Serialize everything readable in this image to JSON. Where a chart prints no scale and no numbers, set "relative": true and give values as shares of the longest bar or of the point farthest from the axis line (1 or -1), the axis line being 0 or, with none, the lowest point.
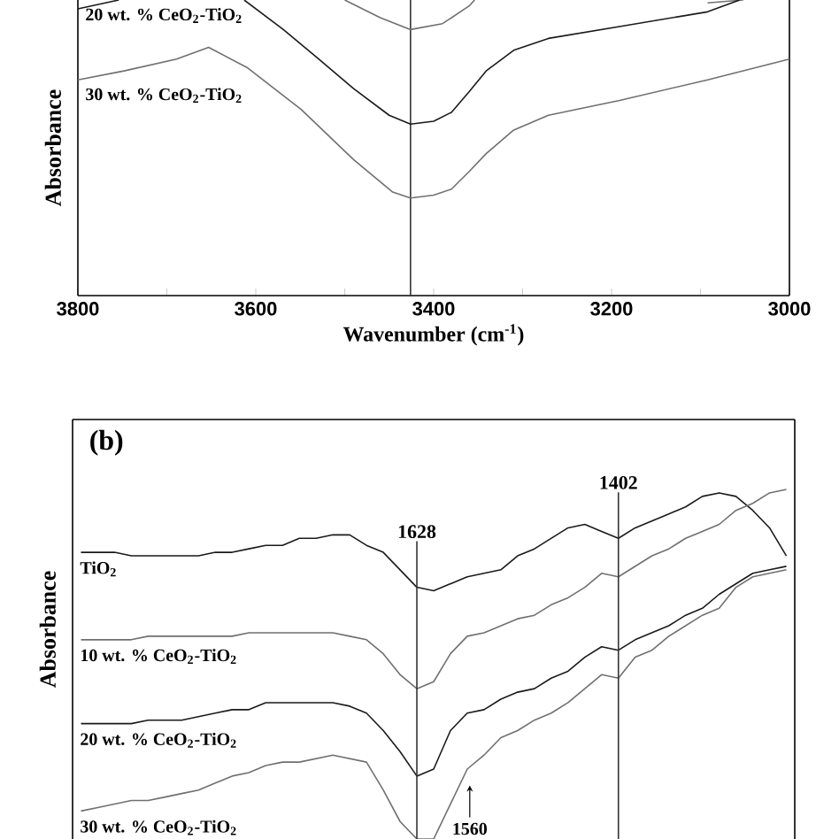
{
  "chart_data": [
    {
      "type": "line",
      "xlabel": "Wavenumber (cm$^{-1}$)",
      "ylabel": "Absorbance",
      "relative": true,
      "tick_labels": "x",
      "xlim": [
        3800,
        3000
      ],
      "xticks": [
        3800,
        {
          "value": 3700,
          "label": null
        },
        3600,
        {
          "value": 3500,
          "label": null
        },
        3400,
        {
          "value": 3300,
          "label": null
        },
        3200,
        {
          "value": 3100,
          "label": null
        },
        3000
      ],
      "series": [
        {
          "color": "#1a1a1a",
          "x": [
            3800,
            3754
          ],
          "values": [
            0.97,
            1.0
          ]
        },
        {
          "color": "#707070",
          "x": [
            3500,
            3460,
            3426,
            3390,
            3360,
            3354
          ],
          "values": [
            1.0,
            0.94,
            0.9,
            0.92,
            0.98,
            1.0
          ]
        },
        {
          "color": "#707070",
          "x": [
            3092,
            3052
          ],
          "values": [
            0.99,
            1.0
          ]
        },
        {
          "name": "20 wt. % CeO$_{2}$-TiO$_{2}$",
          "color": "#1a1a1a",
          "x": [
            3613,
            3569,
            3529,
            3490,
            3450,
            3426,
            3400,
            3380,
            3360,
            3341,
            3310,
            3271,
            3191,
            3092,
            3056
          ],
          "values": [
            1.0,
            0.9,
            0.8,
            0.7,
            0.61,
            0.58,
            0.59,
            0.62,
            0.69,
            0.76,
            0.83,
            0.87,
            0.91,
            0.96,
            1.0
          ]
        },
        {
          "name": "30 wt. % CeO$_{2}$-TiO$_{2}$",
          "color": "#707070",
          "x": [
            3800,
            3748,
            3689,
            3653,
            3609,
            3549,
            3490,
            3446,
            3426,
            3400,
            3380,
            3360,
            3341,
            3310,
            3271,
            3191,
            3092,
            3000
          ],
          "values": [
            0.73,
            0.76,
            0.8,
            0.84,
            0.77,
            0.63,
            0.46,
            0.35,
            0.33,
            0.34,
            0.36,
            0.42,
            0.48,
            0.56,
            0.61,
            0.66,
            0.73,
            0.8
          ]
        }
      ],
      "ref_lines": [
        {
          "axis": "x",
          "value": 3426,
          "color": "#333333"
        }
      ]
    },
    {
      "type": "line",
      "ylabel": "Absorbance",
      "relative": true,
      "tick_labels": false,
      "categories": [
        null,
        null,
        null,
        null,
        null,
        null,
        null,
        null,
        null,
        null,
        null,
        null,
        null,
        null,
        null,
        null,
        null,
        null,
        null,
        null,
        null,
        null,
        null,
        null,
        null,
        null,
        null,
        null,
        null,
        null,
        null,
        null,
        null,
        null,
        null,
        null,
        null,
        null,
        null,
        null,
        null,
        null,
        null
      ],
      "series": [
        {
          "name": "TiO$_{2}$",
          "color": "#1a1a1a",
          "values": [
            0.82,
            0.82,
            0.82,
            0.81,
            0.81,
            0.81,
            0.81,
            0.81,
            0.82,
            0.82,
            0.83,
            0.84,
            0.84,
            0.86,
            0.86,
            0.87,
            0.87,
            0.84,
            0.82,
            0.77,
            0.72,
            0.71,
            0.73,
            0.75,
            0.76,
            0.77,
            0.81,
            0.83,
            0.86,
            0.89,
            0.9,
            0.88,
            0.86,
            0.89,
            0.91,
            0.93,
            0.95,
            0.98,
            0.99,
            0.98,
            0.94,
            0.89,
            0.81
          ]
        },
        {
          "name": "10 wt. % CeO$_{2}$-TiO$_{2}$",
          "color": "#707070",
          "values": [
            0.57,
            0.57,
            0.57,
            0.57,
            0.58,
            0.58,
            0.58,
            0.58,
            0.58,
            0.58,
            0.59,
            0.59,
            0.59,
            0.59,
            0.59,
            0.59,
            0.58,
            0.57,
            0.53,
            0.47,
            0.43,
            0.45,
            0.53,
            0.58,
            0.59,
            0.61,
            0.63,
            0.64,
            0.67,
            0.69,
            0.72,
            0.76,
            0.75,
            0.78,
            0.81,
            0.83,
            0.86,
            0.88,
            0.9,
            0.94,
            0.96,
            0.99,
            1.0
          ]
        },
        {
          "name": "20 wt. % CeO$_{2}$-TiO$_{2}$",
          "color": "#1a1a1a",
          "values": [
            0.33,
            0.33,
            0.33,
            0.33,
            0.34,
            0.34,
            0.34,
            0.35,
            0.36,
            0.37,
            0.37,
            0.39,
            0.39,
            0.39,
            0.39,
            0.39,
            0.38,
            0.36,
            0.31,
            0.25,
            0.18,
            0.2,
            0.31,
            0.36,
            0.37,
            0.4,
            0.42,
            0.43,
            0.46,
            0.48,
            0.52,
            0.55,
            0.54,
            0.57,
            0.59,
            0.61,
            0.64,
            0.66,
            0.7,
            0.73,
            0.76,
            0.77,
            0.78
          ]
        },
        {
          "name": "30 wt. % CeO$_{2}$-TiO$_{2}$",
          "color": "#707070",
          "values": [
            0.08,
            0.09,
            0.1,
            0.11,
            0.11,
            0.12,
            0.13,
            0.14,
            0.16,
            0.18,
            0.19,
            0.21,
            0.22,
            0.22,
            0.23,
            0.24,
            0.23,
            0.22,
            0.14,
            0.05,
            0.0,
            0.0,
            0.1,
            0.2,
            0.24,
            0.29,
            0.31,
            0.34,
            0.36,
            0.39,
            0.43,
            0.47,
            0.46,
            0.52,
            0.54,
            0.58,
            0.61,
            0.64,
            0.66,
            0.72,
            0.75,
            0.76,
            0.77
          ]
        }
      ],
      "annotations": [
        "(b)",
        "1628",
        "1402",
        "1560"
      ]
    }
  ]
}
